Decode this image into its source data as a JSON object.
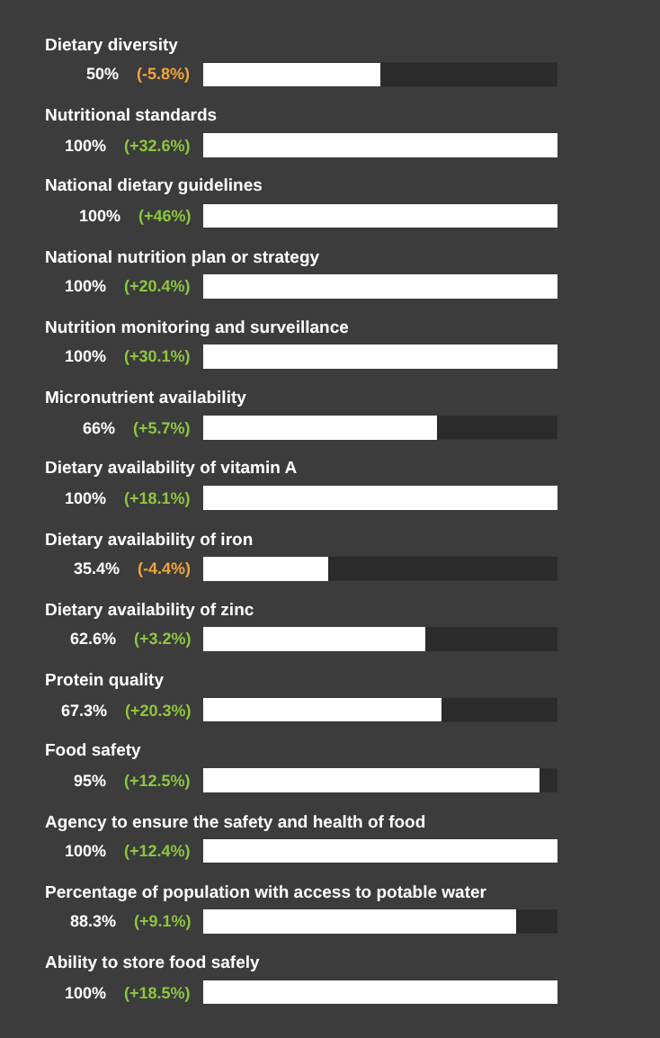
{
  "chart_data": {
    "type": "bar",
    "orientation": "horizontal",
    "categories": [
      "Dietary diversity",
      "Nutritional standards",
      "National dietary guidelines",
      "National nutrition plan or strategy",
      "Nutrition monitoring and surveillance",
      "Micronutrient availability",
      "Dietary availability of vitamin A",
      "Dietary availability of iron",
      "Dietary availability of zinc",
      "Protein quality",
      "Food safety",
      "Agency to ensure the safety and health of food",
      "Percentage of population with access to potable water",
      "Ability to store food safely"
    ],
    "values": [
      50,
      100,
      100,
      100,
      100,
      66,
      100,
      35.4,
      62.6,
      67.3,
      95,
      100,
      88.3,
      100
    ],
    "value_labels": [
      "50% (-5.8%)",
      "100% (+32.6%)",
      "100% (+46%)",
      "100% (+20.4%)",
      "100% (+30.1%)",
      "66% (+5.7%)",
      "100% (+18.1%)",
      "35.4% (-4.4%)",
      "62.6% (+3.2%)",
      "67.3% (+20.3%)",
      "95% (+12.5%)",
      "100% (+12.4%)",
      "88.3% (+9.1%)",
      "100% (+18.5%)"
    ],
    "colors": [
      "#ffffff",
      "#ffffff",
      "#ffffff",
      "#ffffff",
      "#ffffff",
      "#ffffff",
      "#ffffff",
      "#ffffff",
      "#ffffff",
      "#ffffff",
      "#ffffff",
      "#ffffff",
      "#ffffff",
      "#ffffff"
    ],
    "grid": false
  }
}
